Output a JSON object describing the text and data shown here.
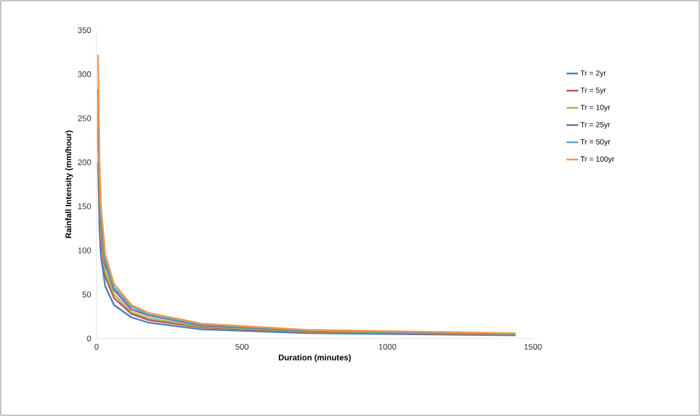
{
  "chart_data": {
    "type": "line",
    "xlabel": "Duration (minutes)",
    "ylabel": "Rainfall Intensity (mm/hour)",
    "x": [
      5,
      10,
      15,
      30,
      60,
      120,
      180,
      360,
      720,
      1440
    ],
    "series": [
      {
        "name": "Tr = 2yr",
        "color": "#4f81bd",
        "values": [
          200,
          124,
          93,
          59,
          38,
          24,
          18,
          10.5,
          6.2,
          3.7
        ]
      },
      {
        "name": "Tr = 5yr",
        "color": "#c0504d",
        "values": [
          238,
          148,
          111,
          70,
          46,
          28,
          21,
          12.6,
          7.4,
          4.4
        ]
      },
      {
        "name": "Tr = 10yr",
        "color": "#9bbb59",
        "values": [
          258,
          160,
          120,
          76,
          50,
          30,
          23,
          13.6,
          8,
          4.8
        ]
      },
      {
        "name": "Tr = 25yr",
        "color": "#8064a2",
        "values": [
          283,
          176,
          132,
          84,
          55,
          33,
          26,
          15,
          8.8,
          5.3
        ]
      },
      {
        "name": "Tr = 50yr",
        "color": "#4bacc6",
        "values": [
          null,
          188,
          141,
          89,
          58,
          36,
          27,
          16,
          9.4,
          5.6
        ]
      },
      {
        "name": "Tr = 100yr",
        "color": "#f79646",
        "values": [
          322,
          200,
          150,
          95,
          62,
          38,
          29,
          17,
          10,
          6
        ]
      }
    ],
    "xlim": [
      0,
      1500
    ],
    "xticks": [
      0,
      500,
      1000,
      1500
    ],
    "ylim": [
      0,
      350
    ],
    "yticks": [
      0,
      50,
      100,
      150,
      200,
      250,
      300,
      350
    ],
    "grid": false,
    "legend": "right",
    "marker": "none",
    "line_style": "solid"
  }
}
